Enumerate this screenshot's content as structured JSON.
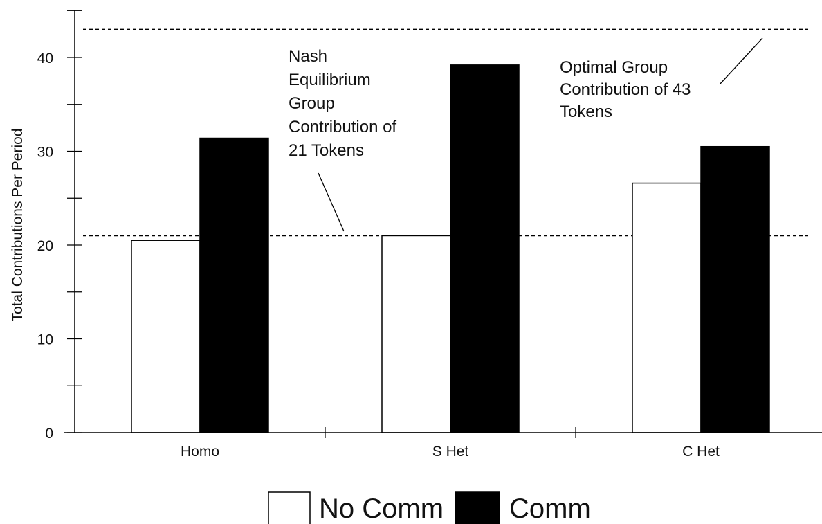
{
  "chart_data": {
    "type": "bar",
    "ylabel": "Total Contributions Per Period",
    "xlabel": "",
    "ylim": [
      0,
      45
    ],
    "yticks_major": [
      0,
      10,
      20,
      30,
      40
    ],
    "categories": [
      "Homo",
      "S Het",
      "C Het"
    ],
    "series": [
      {
        "name": "No Comm",
        "values": [
          20.5,
          21,
          26.6
        ],
        "color": "#ffffff"
      },
      {
        "name": "Comm",
        "values": [
          31.4,
          39.2,
          30.5
        ],
        "color": "#000000"
      }
    ],
    "reference_lines": [
      {
        "value": 21,
        "style": "dashed"
      },
      {
        "value": 43,
        "style": "dashed"
      }
    ],
    "annotations": [
      {
        "lines": [
          "Nash",
          "Equilibrium",
          "Group",
          "Contribution of",
          "21 Tokens"
        ],
        "points_to": 21
      },
      {
        "lines": [
          "Optimal Group",
          "Contribution of 43",
          "Tokens"
        ],
        "points_to": 43
      }
    ],
    "legend_position": "bottom",
    "grid": false
  }
}
